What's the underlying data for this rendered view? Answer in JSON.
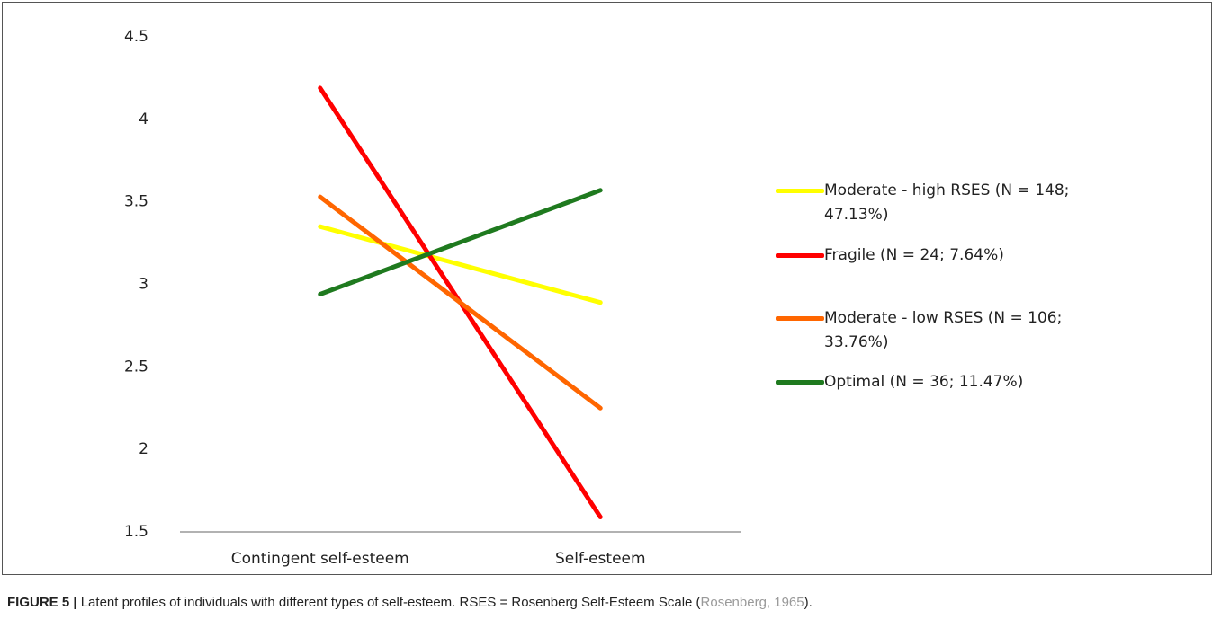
{
  "chart_data": {
    "type": "line",
    "categories": [
      "Contingent self-esteem",
      "Self-esteem"
    ],
    "series": [
      {
        "name": "Moderate - high RSES (N = 148; 47.13%)",
        "color": "#ffff00",
        "values": [
          3.35,
          2.89
        ]
      },
      {
        "name": "Fragile (N = 24; 7.64%)",
        "color": "#ff0000",
        "values": [
          4.19,
          1.59
        ]
      },
      {
        "name": "Moderate - low RSES (N = 106; 33.76%)",
        "color": "#ff6600",
        "values": [
          3.53,
          2.25
        ]
      },
      {
        "name": "Optimal (N = 36; 11.47%)",
        "color": "#1f7a1f",
        "values": [
          2.94,
          3.57
        ]
      }
    ],
    "ylim": [
      1.5,
      4.5
    ],
    "yticks": [
      1.5,
      2,
      2.5,
      3,
      3.5,
      4,
      4.5
    ],
    "grid": false,
    "legend": "right",
    "caption": {
      "label": "FIGURE 5 |",
      "text": " Latent profiles of individuals with different types of self-esteem. RSES = Rosenberg Self-Esteem Scale (",
      "citation": "Rosenberg, 1965",
      "end": ")."
    }
  }
}
